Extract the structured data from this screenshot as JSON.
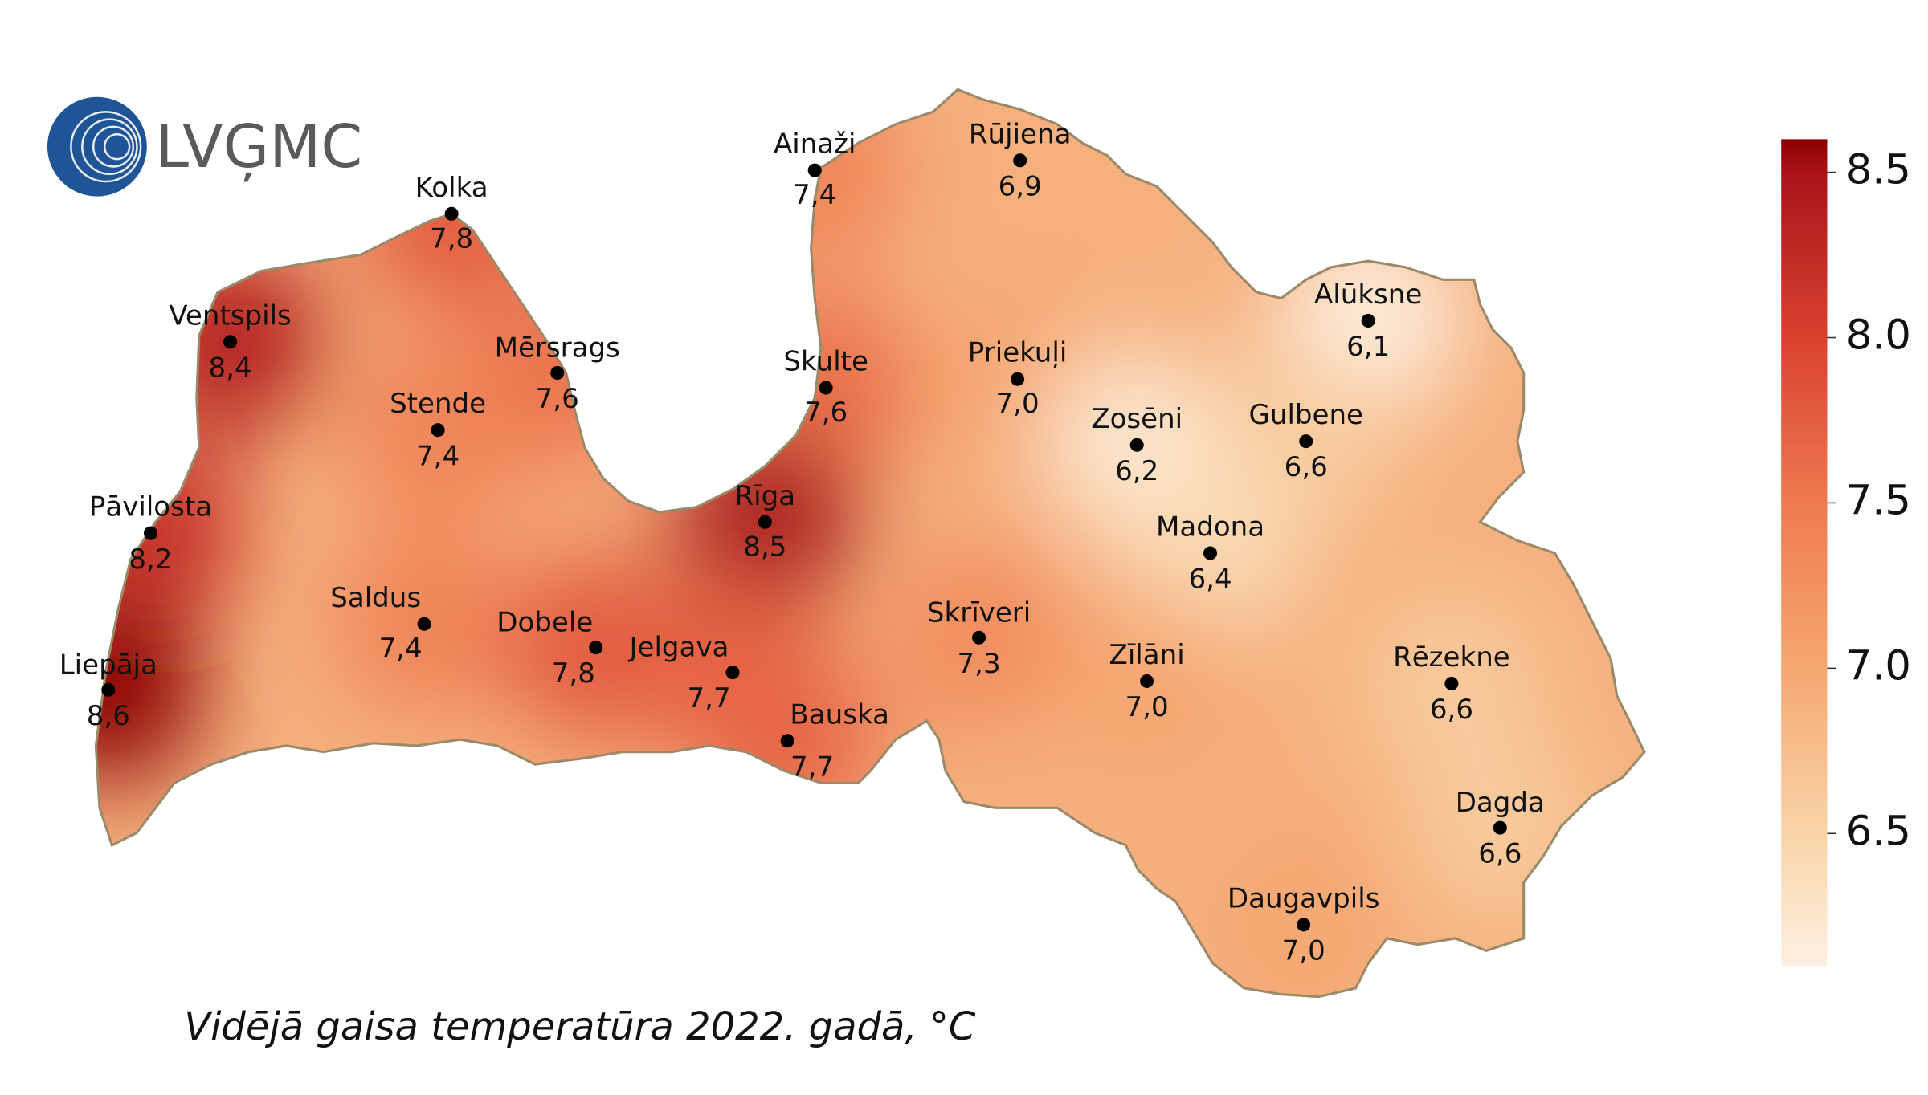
{
  "logo": {
    "text": "LVĢMC"
  },
  "map": {
    "caption": "Vidējā gaisa temperatūra 2022. gadā, °C",
    "stations": [
      {
        "name": "Kolka",
        "value": 7.8,
        "value_label": "7,8"
      },
      {
        "name": "Ainaži",
        "value": 7.4,
        "value_label": "7,4"
      },
      {
        "name": "Rūjiena",
        "value": 6.9,
        "value_label": "6,9"
      },
      {
        "name": "Ventspils",
        "value": 8.4,
        "value_label": "8,4"
      },
      {
        "name": "Mērsrags",
        "value": 7.6,
        "value_label": "7,6"
      },
      {
        "name": "Alūksne",
        "value": 6.1,
        "value_label": "6,1"
      },
      {
        "name": "Priekuļi",
        "value": 7.0,
        "value_label": "7,0"
      },
      {
        "name": "Skulte",
        "value": 7.6,
        "value_label": "7,6"
      },
      {
        "name": "Stende",
        "value": 7.4,
        "value_label": "7,4"
      },
      {
        "name": "Zosēni",
        "value": 6.2,
        "value_label": "6,2"
      },
      {
        "name": "Gulbene",
        "value": 6.6,
        "value_label": "6,6"
      },
      {
        "name": "Pāvilosta",
        "value": 8.2,
        "value_label": "8,2"
      },
      {
        "name": "Rīga",
        "value": 8.5,
        "value_label": "8,5"
      },
      {
        "name": "Madona",
        "value": 6.4,
        "value_label": "6,4"
      },
      {
        "name": "Saldus",
        "value": 7.4,
        "value_label": "7,4"
      },
      {
        "name": "Dobele",
        "value": 7.8,
        "value_label": "7,8"
      },
      {
        "name": "Jelgava",
        "value": 7.7,
        "value_label": "7,7"
      },
      {
        "name": "Skrīveri",
        "value": 7.3,
        "value_label": "7,3"
      },
      {
        "name": "Zīlāni",
        "value": 7.0,
        "value_label": "7,0"
      },
      {
        "name": "Rēzekne",
        "value": 6.6,
        "value_label": "6,6"
      },
      {
        "name": "Liepāja",
        "value": 8.6,
        "value_label": "8,6"
      },
      {
        "name": "Bauska",
        "value": 7.7,
        "value_label": "7,7"
      },
      {
        "name": "Dagda",
        "value": 6.6,
        "value_label": "6,6"
      },
      {
        "name": "Daugavpils",
        "value": 7.0,
        "value_label": "7,0"
      }
    ],
    "colorbar": {
      "lim": [
        6.1,
        8.6
      ],
      "ticks": [
        6.5,
        {
          "value": 7,
          "label": "7.0"
        },
        7.5,
        {
          "value": 8,
          "label": "8.0"
        },
        8.5
      ]
    }
  }
}
